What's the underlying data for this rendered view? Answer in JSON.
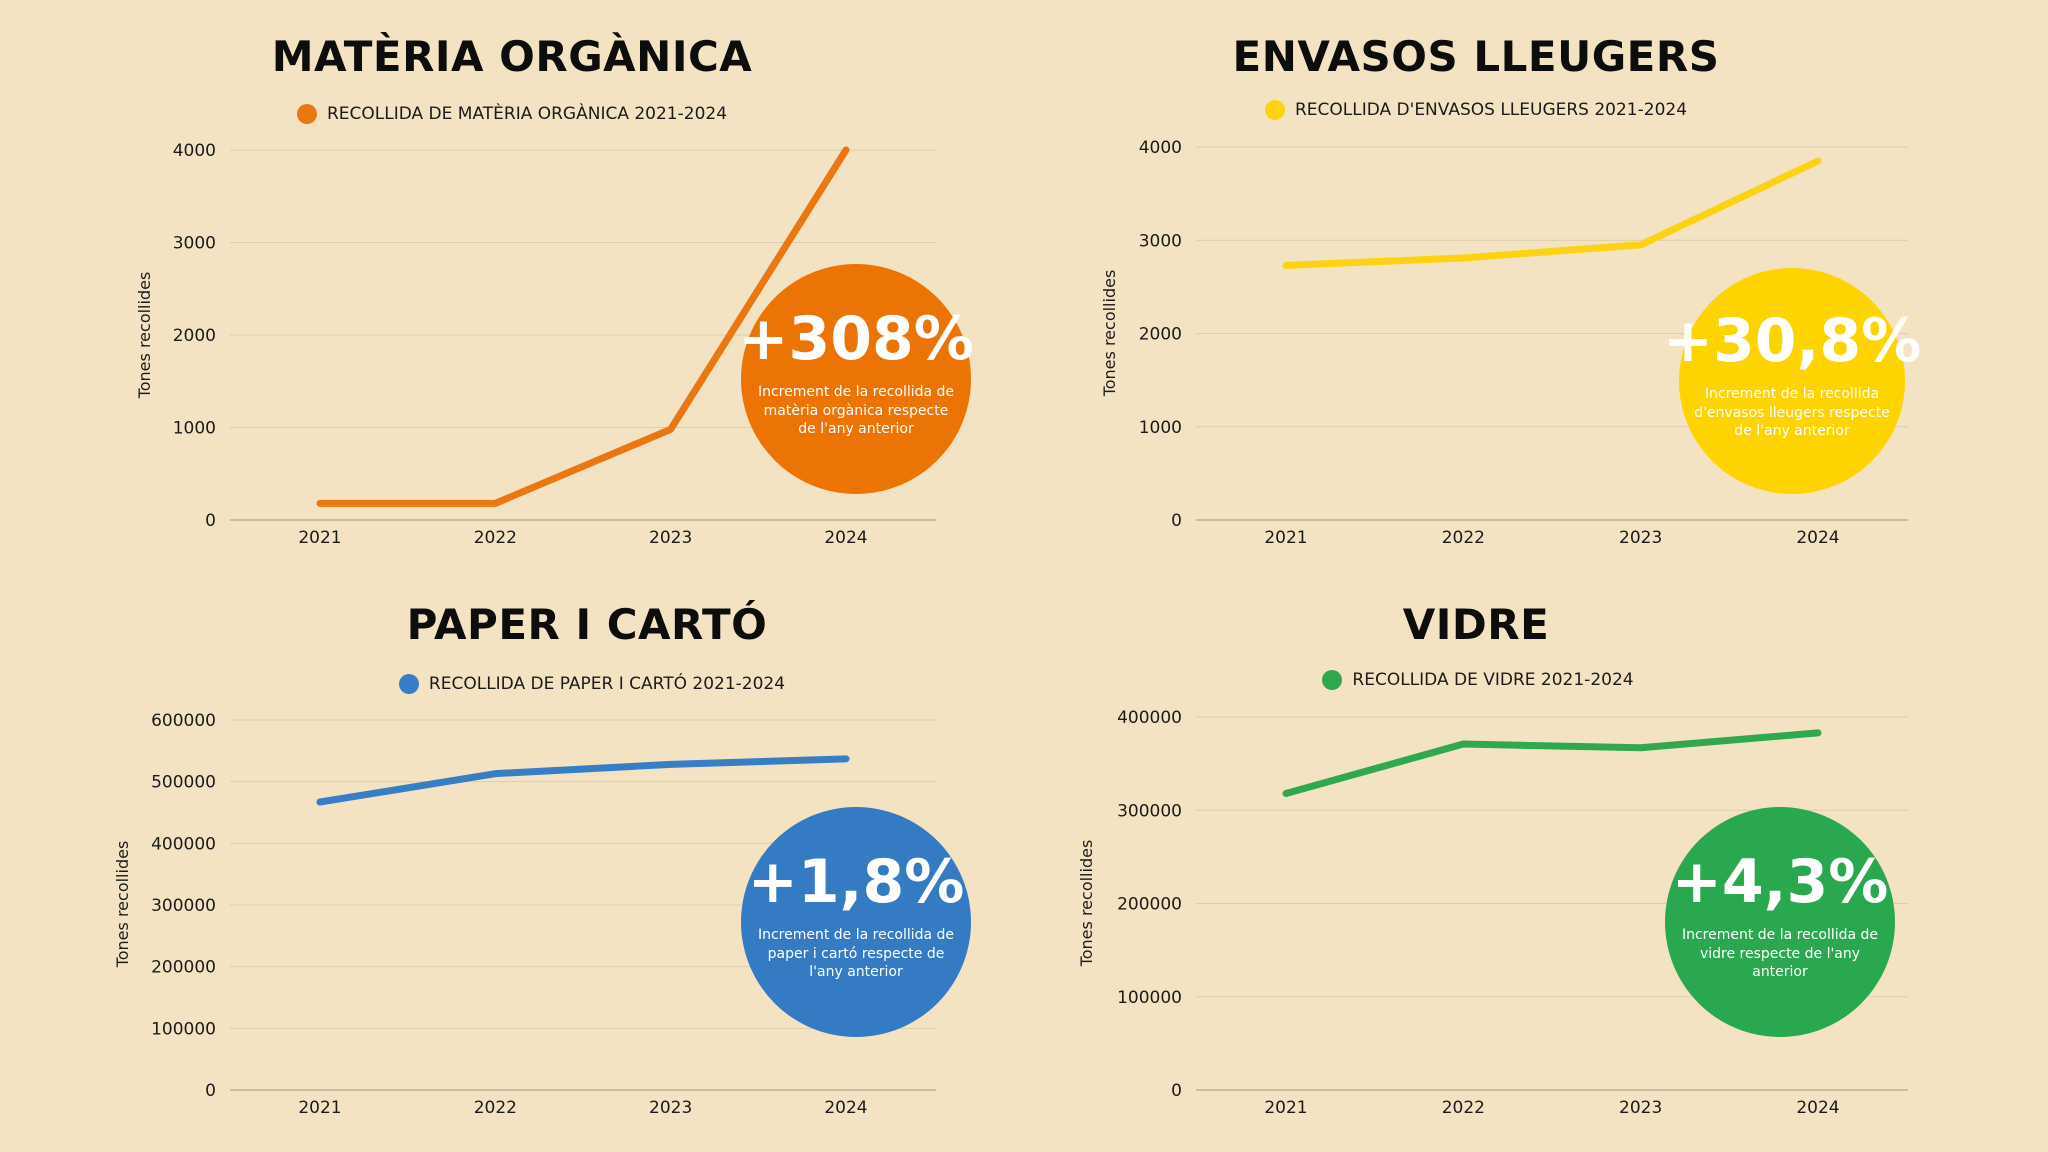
{
  "chart_data": [
    {
      "type": "line",
      "title": "MATÈRIA ORGÀNICA",
      "ylabel": "Tones recollides",
      "xlabel": "",
      "categories": [
        "2021",
        "2022",
        "2023",
        "2024"
      ],
      "series": [
        {
          "name": "RECOLLIDA DE MATÈRIA ORGÀNICA 2021-2024",
          "values": [
            180,
            180,
            980,
            4000
          ]
        }
      ],
      "ylim": [
        0,
        4000
      ],
      "yticks": [
        0,
        1000,
        2000,
        3000,
        4000
      ],
      "ytick_labels": [
        "0",
        "1000",
        "2000",
        "3000",
        "4000"
      ],
      "grid": true,
      "legend": "top-center",
      "color": "#ea7711",
      "badge": {
        "value": "+308%",
        "text": "Increment de la recollida de matèria orgànica respecte de l'any anterior",
        "color": "#ec7404"
      }
    },
    {
      "type": "line",
      "title": "ENVASOS LLEUGERS",
      "ylabel": "Tones recollides",
      "xlabel": "",
      "categories": [
        "2021",
        "2022",
        "2023",
        "2024"
      ],
      "series": [
        {
          "name": "RECOLLIDA D'ENVASOS LLEUGERS 2021-2024",
          "values": [
            2730,
            2810,
            2950,
            3850
          ]
        }
      ],
      "ylim": [
        0,
        4000
      ],
      "yticks": [
        0,
        1000,
        2000,
        3000,
        4000
      ],
      "ytick_labels": [
        "0",
        "1000",
        "2000",
        "3000",
        "4000"
      ],
      "grid": true,
      "legend": "top-center",
      "color": "#fbd313",
      "badge": {
        "value": "+30,8%",
        "text": "Increment de la recollida d'envasos lleugers respecte de l'any anterior",
        "color": "#fdd400"
      }
    },
    {
      "type": "line",
      "title": "PAPER I CARTÓ",
      "ylabel": "Tones recollides",
      "xlabel": "",
      "categories": [
        "2021",
        "2022",
        "2023",
        "2024"
      ],
      "series": [
        {
          "name": "RECOLLIDA DE PAPER I CARTÓ 2021-2024",
          "values": [
            467000,
            513000,
            528000,
            537000
          ]
        }
      ],
      "ylim": [
        0,
        600000
      ],
      "yticks": [
        0,
        100000,
        200000,
        300000,
        400000,
        500000,
        600000
      ],
      "ytick_labels": [
        "0",
        "100000",
        "200000",
        "300000",
        "400000",
        "500000",
        "600000"
      ],
      "grid": true,
      "legend": "top-center",
      "color": "#387ec4",
      "badge": {
        "value": "+1,8%",
        "text": "Increment de la recollida de paper i cartó respecte de l'any anterior",
        "color": "#347bc3"
      }
    },
    {
      "type": "line",
      "title": "VIDRE",
      "ylabel": "Tones recollides",
      "xlabel": "",
      "categories": [
        "2021",
        "2022",
        "2023",
        "2024"
      ],
      "series": [
        {
          "name": "RECOLLIDA DE VIDRE 2021-2024",
          "values": [
            318000,
            371000,
            367000,
            383000
          ]
        }
      ],
      "ylim": [
        0,
        400000
      ],
      "yticks": [
        0,
        100000,
        200000,
        300000,
        400000
      ],
      "ytick_labels": [
        "0",
        "100000",
        "200000",
        "300000",
        "400000"
      ],
      "grid": true,
      "legend": "top-center",
      "color": "#2fa84f",
      "badge": {
        "value": "+4,3%",
        "text": "Increment de la recollida de vidre respecte de l'any anterior",
        "color": "#2aa84f"
      }
    }
  ]
}
